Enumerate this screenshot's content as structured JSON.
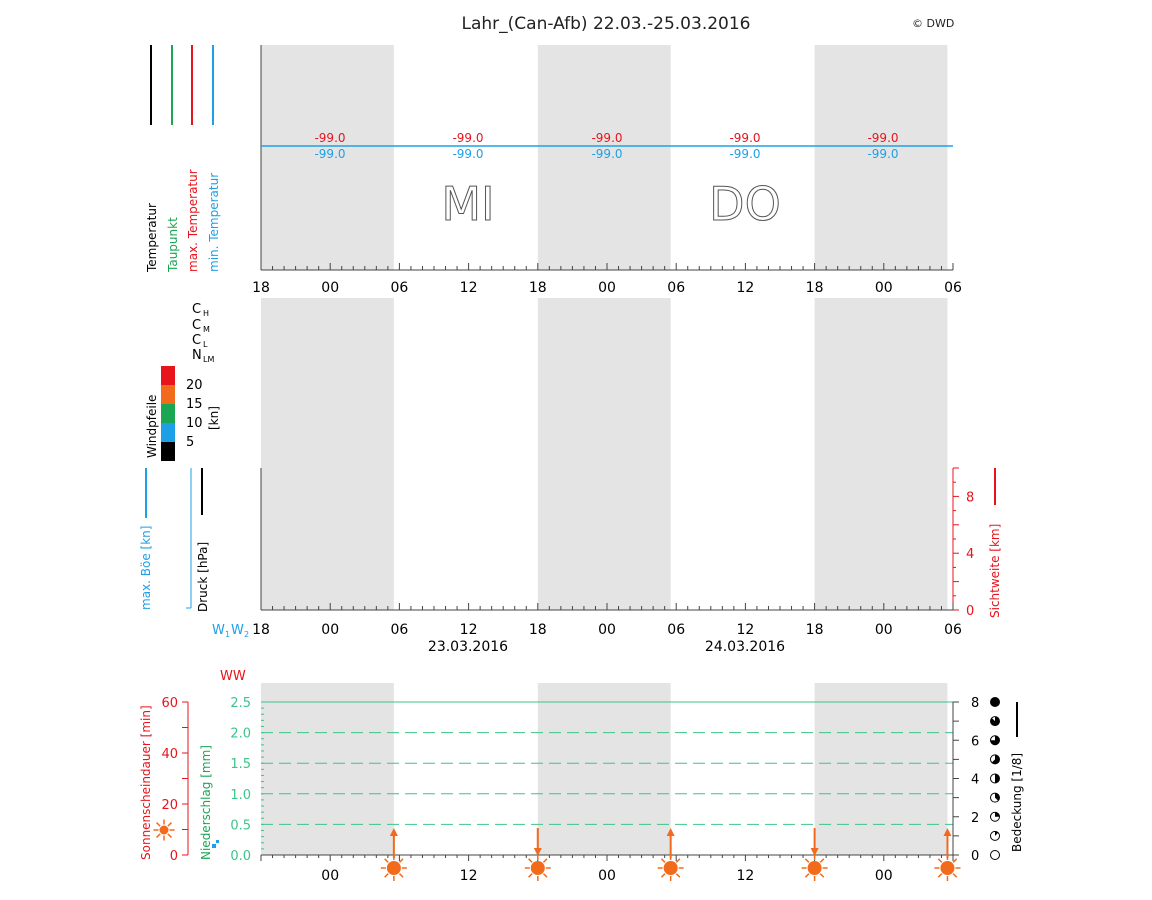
{
  "header": {
    "title": "Lahr_(Can-Afb) 22.03.-25.03.2016",
    "copyright": "© DWD"
  },
  "colors": {
    "black": "#000000",
    "green": "#1aa653",
    "red": "#e8141c",
    "blue": "#1ea0e6",
    "orange": "#f26a1b",
    "night_band": "#e4e4e4",
    "precip_green": "#3cc48a"
  },
  "legend_temperature": [
    {
      "label": "Temperatur",
      "color": "#000000"
    },
    {
      "label": "Taupunkt",
      "color": "#1aa653"
    },
    {
      "label": "max. Temperatur",
      "color": "#e8141c"
    },
    {
      "label": "min. Temperatur",
      "color": "#1ea0e6"
    }
  ],
  "cloud_labels": {
    "ch": "C",
    "ch_sub": "H",
    "cm": "C",
    "cm_sub": "M",
    "cl": "C",
    "cl_sub": "L",
    "n": "N",
    "n_sub": "LM"
  },
  "wind_legend": {
    "title": "Windpfeile",
    "unit": "[kn]",
    "levels": [
      {
        "label": "20",
        "color": "#e8141c"
      },
      {
        "label": "15",
        "color": "#f26a1b"
      },
      {
        "label": "10",
        "color": "#1aa653"
      },
      {
        "label": "5",
        "color": "#1ea0e6"
      },
      {
        "label": "",
        "color": "#000000"
      }
    ]
  },
  "panel3_labels": {
    "gust": "max. Böe [kn]",
    "pressure": "Druck [hPa]",
    "visibility": "Sichtweite [km]",
    "w1w2": "W",
    "w1_sub": "1",
    "w2_sub": "2"
  },
  "dates": [
    "23.03.2016",
    "24.03.2016"
  ],
  "weekdays": [
    "MI",
    "DO"
  ],
  "panel4_labels": {
    "ww": "WW",
    "sunshine": "Sonnenscheindauer [min]",
    "precip": "Niederschlag [mm]",
    "cover": "Bedeckung [1/8]"
  },
  "chart_data": [
    {
      "type": "line",
      "title": "Lahr_(Can-Afb) 22.03.-25.03.2016",
      "x_tick_labels": [
        "18",
        "00",
        "06",
        "12",
        "18",
        "00",
        "06",
        "12",
        "18",
        "00",
        "06"
      ],
      "series": [
        {
          "name": "max. Temperatur",
          "values": [
            -99.0,
            -99.0,
            -99.0,
            -99.0,
            -99.0
          ]
        },
        {
          "name": "min. Temperatur",
          "values": [
            -99.0,
            -99.0,
            -99.0,
            -99.0,
            -99.0
          ]
        }
      ],
      "value_labels": {
        "max": [
          "-99.0",
          "-99.0",
          "-99.0",
          "-99.0",
          "-99.0"
        ],
        "min": [
          "-99.0",
          "-99.0",
          "-99.0",
          "-99.0",
          "-99.0"
        ]
      }
    },
    {
      "type": "line",
      "xlabel_dates": [
        "23.03.2016",
        "24.03.2016"
      ],
      "x_tick_labels": [
        "18",
        "00",
        "06",
        "12",
        "18",
        "00",
        "06",
        "12",
        "18",
        "00",
        "06"
      ],
      "y2_label": "Sichtweite [km]",
      "y2_ticks": [
        "0",
        "4",
        "8"
      ],
      "y2lim": [
        0,
        10
      ],
      "series": []
    },
    {
      "type": "bar",
      "x_tick_labels": [
        "00",
        "12",
        "00",
        "12",
        "00"
      ],
      "y_left_label": "Sonnenscheindauer [min]",
      "y_left_ticks": [
        "0",
        "20",
        "40",
        "60"
      ],
      "y_left_lim": [
        0,
        60
      ],
      "y_precip_label": "Niederschlag [mm]",
      "y_precip_ticks": [
        "0.0",
        "0.5",
        "1.0",
        "1.5",
        "2.0",
        "2.5"
      ],
      "y_precip_lim": [
        0,
        2.5
      ],
      "y_right_label": "Bedeckung [1/8]",
      "y_right_ticks": [
        "0",
        "2",
        "4",
        "6",
        "8"
      ],
      "y_right_lim": [
        0,
        8
      ],
      "sun_events": [
        {
          "kind": "sunrise"
        },
        {
          "kind": "sunset"
        },
        {
          "kind": "sunrise"
        },
        {
          "kind": "sunset"
        },
        {
          "kind": "sunrise"
        }
      ],
      "series": []
    }
  ]
}
